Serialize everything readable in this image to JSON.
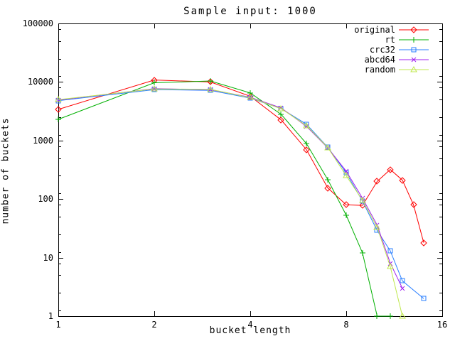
{
  "title": "Sample input: 1000",
  "chart_data": {
    "type": "line",
    "title": "Sample input: 1000",
    "xlabel": "bucket length",
    "ylabel": "number of buckets",
    "x_scale": "log2",
    "y_scale": "log10",
    "xlim": [
      1,
      16
    ],
    "ylim": [
      1,
      100000
    ],
    "x_ticks": [
      1,
      2,
      4,
      8,
      16
    ],
    "y_ticks": [
      1,
      10,
      100,
      1000,
      10000,
      100000
    ],
    "y_minor_multipliers": [
      1.25,
      2.5,
      5,
      8
    ],
    "grid": false,
    "legend_position": "top-right-inside",
    "series": [
      {
        "name": "original",
        "color": "#ff0000",
        "marker": "diamond",
        "points": [
          [
            1,
            3400
          ],
          [
            2,
            10800
          ],
          [
            3,
            10000
          ],
          [
            4,
            5700
          ],
          [
            5,
            2250
          ],
          [
            6,
            700
          ],
          [
            7,
            155
          ],
          [
            8,
            80
          ],
          [
            9,
            78
          ],
          [
            10,
            200
          ],
          [
            11,
            320
          ],
          [
            12,
            210
          ],
          [
            13,
            80
          ],
          [
            14,
            18
          ]
        ]
      },
      {
        "name": "rt",
        "color": "#00b000",
        "marker": "plus",
        "points": [
          [
            1,
            2300
          ],
          [
            2,
            9700
          ],
          [
            3,
            10400
          ],
          [
            4,
            6500
          ],
          [
            5,
            2800
          ],
          [
            6,
            890
          ],
          [
            7,
            215
          ],
          [
            8,
            53
          ],
          [
            9,
            12
          ],
          [
            10,
            1
          ],
          [
            11,
            1
          ]
        ]
      },
      {
        "name": "crc32",
        "color": "#2a7fff",
        "marker": "square",
        "points": [
          [
            1,
            4800
          ],
          [
            2,
            7400
          ],
          [
            3,
            7200
          ],
          [
            4,
            5300
          ],
          [
            5,
            3500
          ],
          [
            6,
            1900
          ],
          [
            7,
            770
          ],
          [
            8,
            280
          ],
          [
            9,
            92
          ],
          [
            10,
            29
          ],
          [
            11,
            13
          ],
          [
            12,
            4
          ],
          [
            14,
            2
          ]
        ]
      },
      {
        "name": "abcd64",
        "color": "#a020f0",
        "marker": "cross",
        "points": [
          [
            1,
            4900
          ],
          [
            2,
            7700
          ],
          [
            3,
            7400
          ],
          [
            4,
            5500
          ],
          [
            5,
            3600
          ],
          [
            6,
            1750
          ],
          [
            7,
            750
          ],
          [
            8,
            300
          ],
          [
            9,
            103
          ],
          [
            10,
            36
          ],
          [
            11,
            8
          ],
          [
            12,
            3
          ]
        ]
      },
      {
        "name": "random",
        "color": "#bfe84d",
        "marker": "triangle",
        "points": [
          [
            1,
            5000
          ],
          [
            2,
            7600
          ],
          [
            3,
            7500
          ],
          [
            4,
            5400
          ],
          [
            5,
            3500
          ],
          [
            6,
            1800
          ],
          [
            7,
            760
          ],
          [
            8,
            250
          ],
          [
            9,
            95
          ],
          [
            10,
            33
          ],
          [
            11,
            7
          ],
          [
            12,
            1
          ]
        ]
      }
    ]
  }
}
